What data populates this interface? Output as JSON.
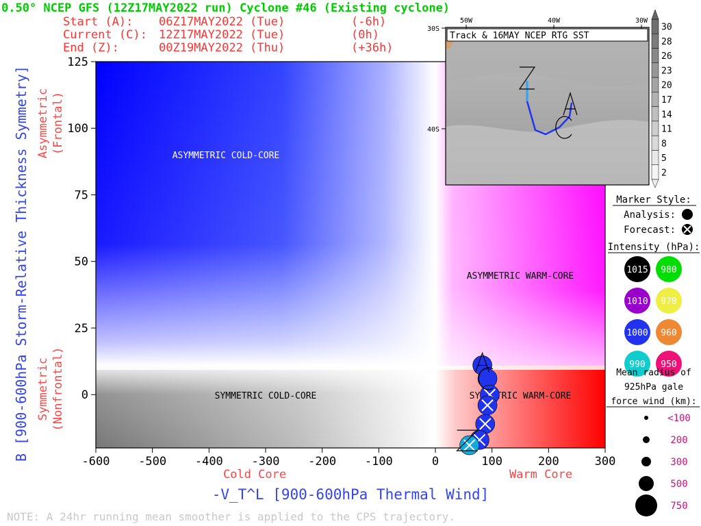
{
  "header": {
    "title": "0.50° NCEP GFS (12Z17MAY2022 run) Cyclone #46 (Existing cyclone)",
    "start_label": "Start (A):",
    "start_time": "06Z17MAY2022 (Tue)",
    "start_offset": "(-6h)",
    "current_label": "Current (C):",
    "current_time": "12Z17MAY2022 (Tue)",
    "current_offset": "(0h)",
    "end_label": "End (Z):",
    "end_time": "00Z19MAY2022 (Thu)",
    "end_offset": "(+36h)"
  },
  "axes": {
    "ylabel": "B [900-600hPa Storm-Relative Thickness Symmetry]",
    "y_upper_label_1": "Asymmetric",
    "y_upper_label_2": "(Frontal)",
    "y_lower_label_1": "Symmetric",
    "y_lower_label_2": "(Nonfrontal)",
    "xlabel": "-V_T^L [900-600hPa Thermal Wind]",
    "x_cold": "Cold Core",
    "x_warm": "Warm Core",
    "xticks": [
      "-600",
      "-500",
      "-400",
      "-300",
      "-200",
      "-100",
      "0",
      "100",
      "200",
      "300"
    ],
    "yticks": [
      "125",
      "100",
      "75",
      "50",
      "25",
      "0"
    ]
  },
  "regions": {
    "asym_cold": "ASYMMETRIC COLD-CORE",
    "asym_warm": "ASYMMETRIC WARM-CORE",
    "sym_cold": "SYMMETRIC COLD-CORE",
    "sym_warm": "SYMMETRIC WARM-CORE"
  },
  "note": "NOTE:  A 24hr running mean smoother is applied to the CPS trajectory.",
  "inset": {
    "title": "Track & 16MAY NCEP RTG SST",
    "lon_labels": [
      "50W",
      "40W",
      "30W"
    ],
    "lat_labels": [
      "30S",
      "40S"
    ],
    "sst_scale": [
      "30",
      "28",
      "26",
      "23",
      "20",
      "17",
      "14",
      "11",
      "8",
      "5",
      "2"
    ]
  },
  "legend": {
    "marker_style": "Marker Style:",
    "analysis": "Analysis:",
    "forecast": "Forecast:",
    "intensity": "Intensity (hPa):",
    "intensity_values": [
      {
        "label": "1015",
        "color": "#000000"
      },
      {
        "label": "980",
        "color": "#00dd00"
      },
      {
        "label": "1010",
        "color": "#9900cc"
      },
      {
        "label": "970",
        "color": "#eeee44"
      },
      {
        "label": "1000",
        "color": "#2233ee"
      },
      {
        "label": "960",
        "color": "#ee8833"
      },
      {
        "label": "990",
        "color": "#11cccc"
      },
      {
        "label": "950",
        "color": "#ee1177"
      }
    ],
    "radius_title_1": "Mean radius of",
    "radius_title_2": "925hPa gale",
    "radius_title_3": "force wind (km):",
    "radius_values": [
      "<100",
      "200",
      "300",
      "500",
      "750"
    ]
  },
  "chart_data": {
    "type": "scatter",
    "xlim": [
      -600,
      300
    ],
    "ylim": [
      -20,
      125
    ],
    "x_axis": "-V_T^L [900-600hPa Thermal Wind]",
    "y_axis": "B [900-600hPa Storm-Relative Thickness Symmetry]",
    "series": [
      {
        "name": "trajectory",
        "points": [
          {
            "x": 83,
            "y": 11,
            "kind": "analysis",
            "color": "#2233ee"
          },
          {
            "x": 92,
            "y": 6,
            "kind": "analysis",
            "color": "#2233ee"
          },
          {
            "x": 96,
            "y": 0,
            "kind": "forecast",
            "color": "#2233ee"
          },
          {
            "x": 92,
            "y": -4,
            "kind": "forecast",
            "color": "#2233ee"
          },
          {
            "x": 88,
            "y": -11,
            "kind": "forecast",
            "color": "#2233ee"
          },
          {
            "x": 78,
            "y": -17,
            "kind": "forecast",
            "color": "#2233ee"
          },
          {
            "x": 60,
            "y": -19,
            "kind": "forecast",
            "color": "#11aadd"
          }
        ]
      }
    ],
    "start_marker": "A",
    "current_marker": "C",
    "end_marker": "Z"
  }
}
